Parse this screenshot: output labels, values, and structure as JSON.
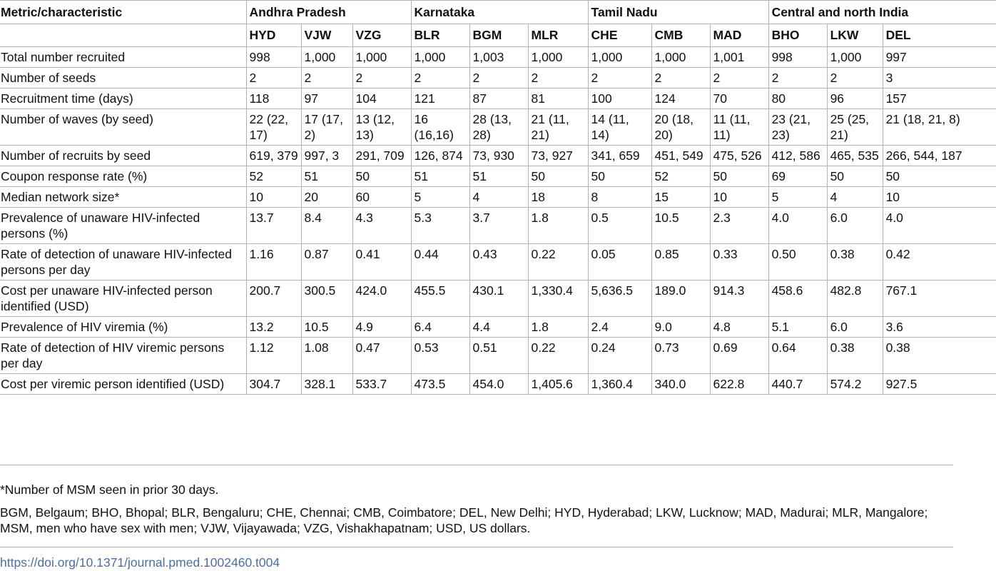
{
  "table": {
    "metric_header": "Metric/characteristic",
    "groups": [
      {
        "name": "Andhra Pradesh",
        "cities": [
          "HYD",
          "VJW",
          "VZG"
        ]
      },
      {
        "name": "Karnataka",
        "cities": [
          "BLR",
          "BGM",
          "MLR"
        ]
      },
      {
        "name": "Tamil Nadu",
        "cities": [
          "CHE",
          "CMB",
          "MAD"
        ]
      },
      {
        "name": "Central and north India",
        "cities": [
          "BHO",
          "LKW",
          "DEL"
        ]
      }
    ],
    "rows": [
      {
        "metric": "Total number recruited",
        "values": [
          "998",
          "1,000",
          "1,000",
          "1,000",
          "1,003",
          "1,000",
          "1,000",
          "1,000",
          "1,001",
          "998",
          "1,000",
          "997"
        ]
      },
      {
        "metric": "Number of seeds",
        "values": [
          "2",
          "2",
          "2",
          "2",
          "2",
          "2",
          "2",
          "2",
          "2",
          "2",
          "2",
          "3"
        ]
      },
      {
        "metric": "Recruitment time (days)",
        "values": [
          "118",
          "97",
          "104",
          "121",
          "87",
          "81",
          "100",
          "124",
          "70",
          "80",
          "96",
          "157"
        ]
      },
      {
        "metric": "Number of waves (by seed)",
        "values": [
          "22 (22, 17)",
          "17 (17, 2)",
          "13 (12, 13)",
          "16 (16,16)",
          "28 (13, 28)",
          "21 (11, 21)",
          "14 (11, 14)",
          "20 (18, 20)",
          "11 (11, 11)",
          "23 (21, 23)",
          "25 (25, 21)",
          "21 (18, 21, 8)"
        ]
      },
      {
        "metric": "Number of recruits by seed",
        "values": [
          "619, 379",
          "997, 3",
          "291, 709",
          "126, 874",
          "73, 930",
          "73, 927",
          "341, 659",
          "451, 549",
          "475, 526",
          "412, 586",
          "465, 535",
          "266, 544, 187"
        ]
      },
      {
        "metric": "Coupon response rate (%)",
        "values": [
          "52",
          "51",
          "50",
          "51",
          "51",
          "50",
          "50",
          "52",
          "50",
          "69",
          "50",
          "50"
        ]
      },
      {
        "metric": "Median network size*",
        "values": [
          "10",
          "20",
          "60",
          "5",
          "4",
          "18",
          "8",
          "15",
          "10",
          "5",
          "4",
          "10"
        ]
      },
      {
        "metric": "Prevalence of unaware HIV-infected persons (%)",
        "values": [
          "13.7",
          "8.4",
          "4.3",
          "5.3",
          "3.7",
          "1.8",
          "0.5",
          "10.5",
          "2.3",
          "4.0",
          "6.0",
          "4.0"
        ]
      },
      {
        "metric": "Rate of detection of unaware HIV-infected persons per day",
        "values": [
          "1.16",
          "0.87",
          "0.41",
          "0.44",
          "0.43",
          "0.22",
          "0.05",
          "0.85",
          "0.33",
          "0.50",
          "0.38",
          "0.42"
        ]
      },
      {
        "metric": "Cost per unaware HIV-infected person identified (USD)",
        "values": [
          "200.7",
          "300.5",
          "424.0",
          "455.5",
          "430.1",
          "1,330.4",
          "5,636.5",
          "189.0",
          "914.3",
          "458.6",
          "482.8",
          "767.1"
        ]
      },
      {
        "metric": "Prevalence of HIV viremia (%)",
        "values": [
          "13.2",
          "10.5",
          "4.9",
          "6.4",
          "4.4",
          "1.8",
          "2.4",
          "9.0",
          "4.8",
          "5.1",
          "6.0",
          "3.6"
        ]
      },
      {
        "metric": "Rate of detection of HIV viremic persons per day",
        "values": [
          "1.12",
          "1.08",
          "0.47",
          "0.53",
          "0.51",
          "0.22",
          "0.24",
          "0.73",
          "0.69",
          "0.64",
          "0.38",
          "0.38"
        ]
      },
      {
        "metric": "Cost per viremic person identified (USD)",
        "values": [
          "304.7",
          "328.1",
          "533.7",
          "473.5",
          "454.0",
          "1,405.6",
          "1,360.4",
          "340.0",
          "622.8",
          "440.7",
          "574.2",
          "927.5"
        ]
      }
    ]
  },
  "footnotes": {
    "asterisk": "*Number of MSM seen in prior 30 days.",
    "abbreviations": "BGM, Belgaum; BHO, Bhopal; BLR, Bengaluru; CHE, Chennai; CMB, Coimbatore; DEL, New Delhi; HYD, Hyderabad; LKW, Lucknow; MAD, Madurai; MLR, Mangalore; MSM, men who have sex with men; VJW, Vijayawada; VZG, Vishakhapatnam; USD, US dollars."
  },
  "doi": "https://doi.org/10.1371/journal.pmed.1002460.t004"
}
